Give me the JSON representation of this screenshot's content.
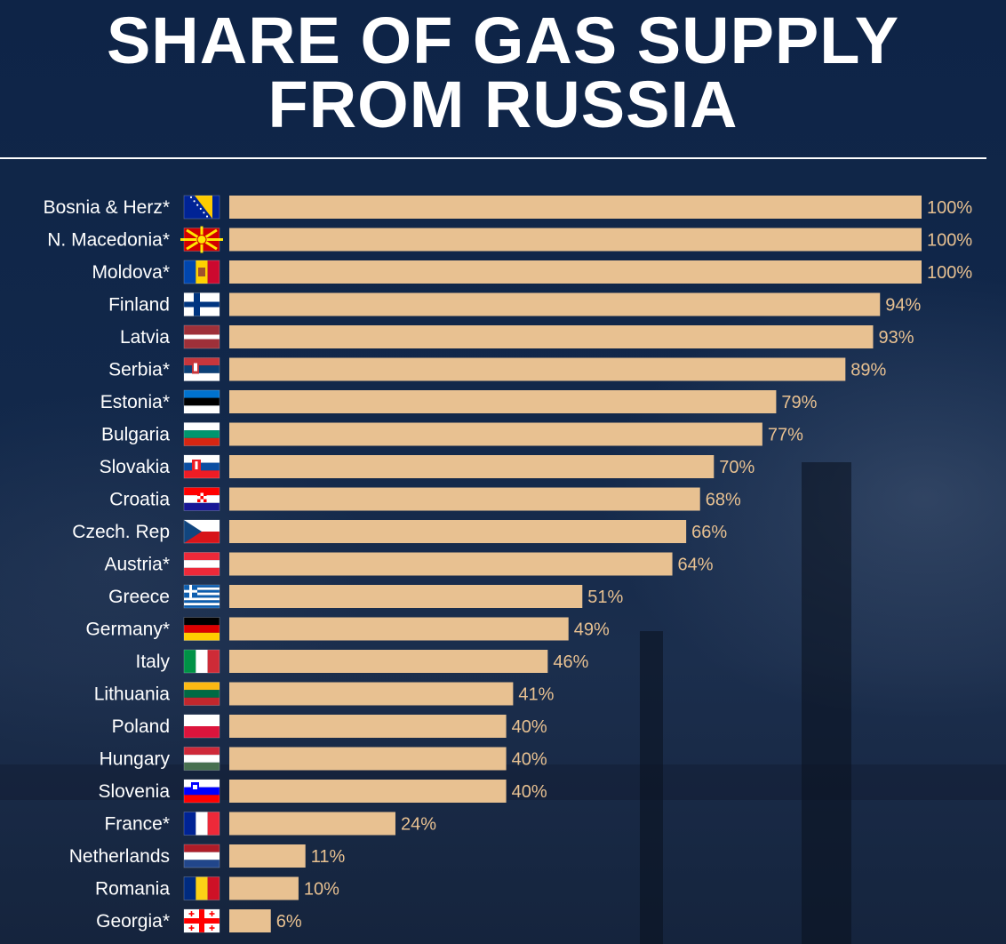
{
  "title_line1": "SHARE OF GAS SUPPLY",
  "title_line2": "FROM RUSSIA",
  "colors": {
    "bar": "#e8c191",
    "text": "#ffffff",
    "value_text": "#e8c191",
    "background": "#0f2545"
  },
  "chart_data": {
    "type": "bar",
    "orientation": "horizontal",
    "categories": [
      "Bosnia & Herz*",
      "N. Macedonia*",
      "Moldova*",
      "Finland",
      "Latvia",
      "Serbia*",
      "Estonia*",
      "Bulgaria",
      "Slovakia",
      "Croatia",
      "Czech. Rep",
      "Austria*",
      "Greece",
      "Germany*",
      "Italy",
      "Lithuania",
      "Poland",
      "Hungary",
      "Slovenia",
      "France*",
      "Netherlands",
      "Romania",
      "Georgia*"
    ],
    "values": [
      100,
      100,
      100,
      94,
      93,
      89,
      79,
      77,
      70,
      68,
      66,
      64,
      51,
      49,
      46,
      41,
      40,
      40,
      40,
      24,
      11,
      10,
      6
    ],
    "value_labels": [
      "100%",
      "100%",
      "100%",
      "94%",
      "93%",
      "89%",
      "79%",
      "77%",
      "70%",
      "68%",
      "66%",
      "64%",
      "51%",
      "49%",
      "46%",
      "41%",
      "40%",
      "40%",
      "40%",
      "24%",
      "11%",
      "10%",
      "6%"
    ],
    "flags": [
      "bosnia-flag-icon",
      "north-macedonia-flag-icon",
      "moldova-flag-icon",
      "finland-flag-icon",
      "latvia-flag-icon",
      "serbia-flag-icon",
      "estonia-flag-icon",
      "bulgaria-flag-icon",
      "slovakia-flag-icon",
      "croatia-flag-icon",
      "czech-flag-icon",
      "austria-flag-icon",
      "greece-flag-icon",
      "germany-flag-icon",
      "italy-flag-icon",
      "lithuania-flag-icon",
      "poland-flag-icon",
      "hungary-flag-icon",
      "slovenia-flag-icon",
      "france-flag-icon",
      "netherlands-flag-icon",
      "romania-flag-icon",
      "georgia-flag-icon"
    ],
    "xlim": [
      0,
      100
    ],
    "grid": false
  }
}
